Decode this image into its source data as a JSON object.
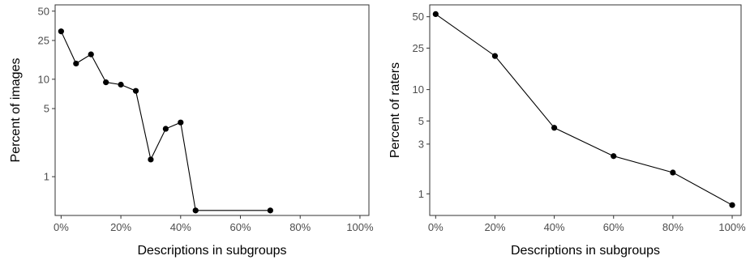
{
  "chart_data": [
    {
      "type": "line",
      "xlabel": "Descriptions in subgroups",
      "ylabel": "Percent of images",
      "x_ticks": [
        "0%",
        "20%",
        "40%",
        "60%",
        "80%",
        "100%"
      ],
      "x_tick_values": [
        0,
        20,
        40,
        60,
        80,
        100
      ],
      "y_ticks": [
        "1",
        "5",
        "10",
        "25",
        "50"
      ],
      "y_tick_values": [
        1,
        5,
        10,
        25,
        50
      ],
      "xlim": [
        -2,
        103
      ],
      "ylim": [
        0.4,
        58
      ],
      "y_scale": "log",
      "grid": false,
      "x": [
        0,
        5,
        10,
        15,
        20,
        25,
        30,
        35,
        40,
        45,
        70
      ],
      "y": [
        31,
        14.5,
        18,
        9.3,
        8.8,
        7.6,
        1.5,
        3.1,
        3.6,
        0.45,
        0.45
      ]
    },
    {
      "type": "line",
      "xlabel": "Descriptions in subgroups",
      "ylabel": "Percent of raters",
      "x_ticks": [
        "0%",
        "20%",
        "40%",
        "60%",
        "80%",
        "100%"
      ],
      "x_tick_values": [
        0,
        20,
        40,
        60,
        80,
        100
      ],
      "y_ticks": [
        "1",
        "3",
        "5",
        "10",
        "25",
        "50"
      ],
      "y_tick_values": [
        1,
        3,
        5,
        10,
        25,
        50
      ],
      "xlim": [
        -2,
        103
      ],
      "ylim": [
        0.62,
        65
      ],
      "y_scale": "log",
      "grid": false,
      "x": [
        0,
        20,
        40,
        60,
        80,
        100
      ],
      "y": [
        53,
        21,
        4.3,
        2.3,
        1.6,
        0.78
      ]
    }
  ]
}
